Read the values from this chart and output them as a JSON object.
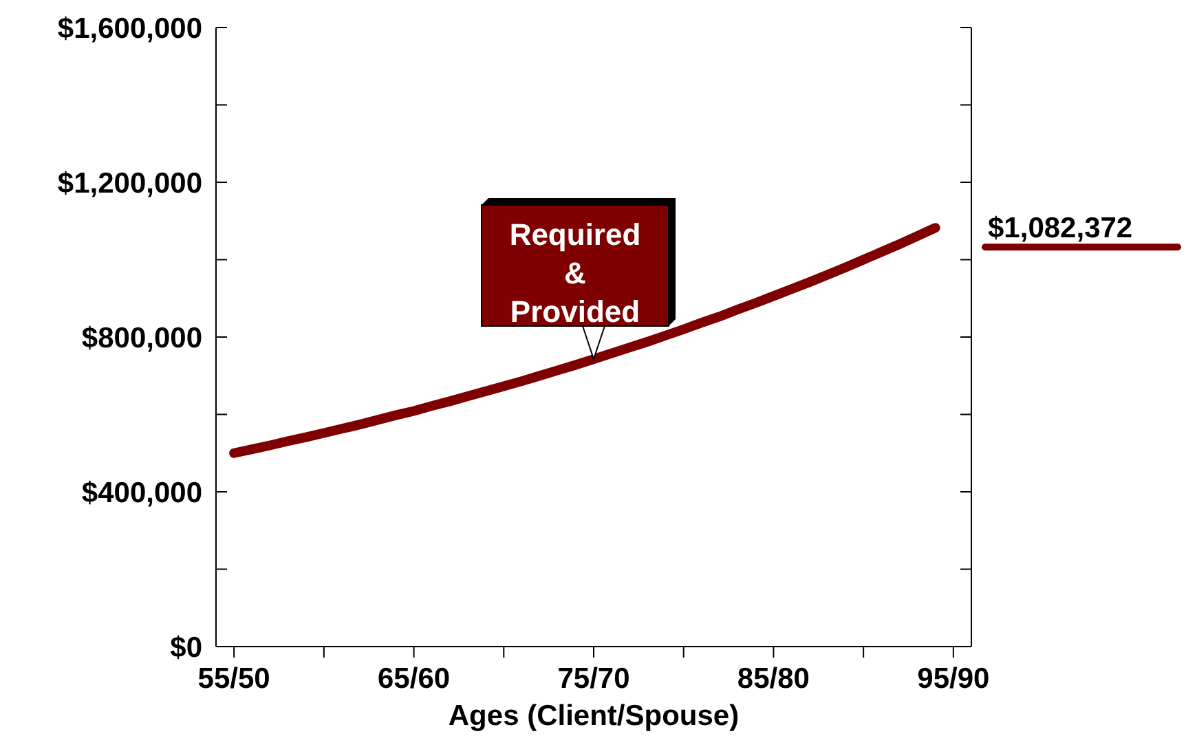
{
  "chart_data": {
    "type": "line",
    "xlabel": "Ages (Client/Spouse)",
    "categories": [
      "55/50",
      null,
      null,
      null,
      null,
      null,
      null,
      null,
      null,
      null,
      "65/60",
      null,
      null,
      null,
      null,
      null,
      null,
      null,
      null,
      null,
      "75/70",
      null,
      null,
      null,
      null,
      null,
      null,
      null,
      null,
      null,
      "85/80",
      null,
      null,
      null,
      null,
      null,
      null,
      null,
      null,
      null,
      "95/90"
    ],
    "series": [
      {
        "name": "Required & Provided",
        "color": "#7f0000",
        "values": [
          500000,
          510000,
          520000,
          531000,
          541000,
          552000,
          563000,
          574000,
          586000,
          598000,
          609000,
          622000,
          634000,
          647000,
          660000,
          673000,
          686000,
          700000,
          714000,
          728000,
          743000,
          758000,
          773000,
          788000,
          804000,
          820000,
          837000,
          853000,
          871000,
          888000,
          906000,
          924000,
          942000,
          961000,
          980000,
          1000000,
          1020000,
          1040000,
          1061000,
          1082372,
          null
        ]
      }
    ],
    "ylim": [
      0,
      1600000
    ],
    "yticks": [
      {
        "value": 0,
        "label": "$0"
      },
      {
        "value": 200000,
        "label": null
      },
      {
        "value": 400000,
        "label": "$400,000"
      },
      {
        "value": 600000,
        "label": null
      },
      {
        "value": 800000,
        "label": "$800,000"
      },
      {
        "value": 1000000,
        "label": null
      },
      {
        "value": 1200000,
        "label": "$1,200,000"
      },
      {
        "value": 1400000,
        "label": null
      },
      {
        "value": 1600000,
        "label": "$1,600,000"
      }
    ],
    "annotations": [
      "$1,082,372"
    ],
    "marker": "none",
    "line_style": "solid",
    "grid": false
  }
}
